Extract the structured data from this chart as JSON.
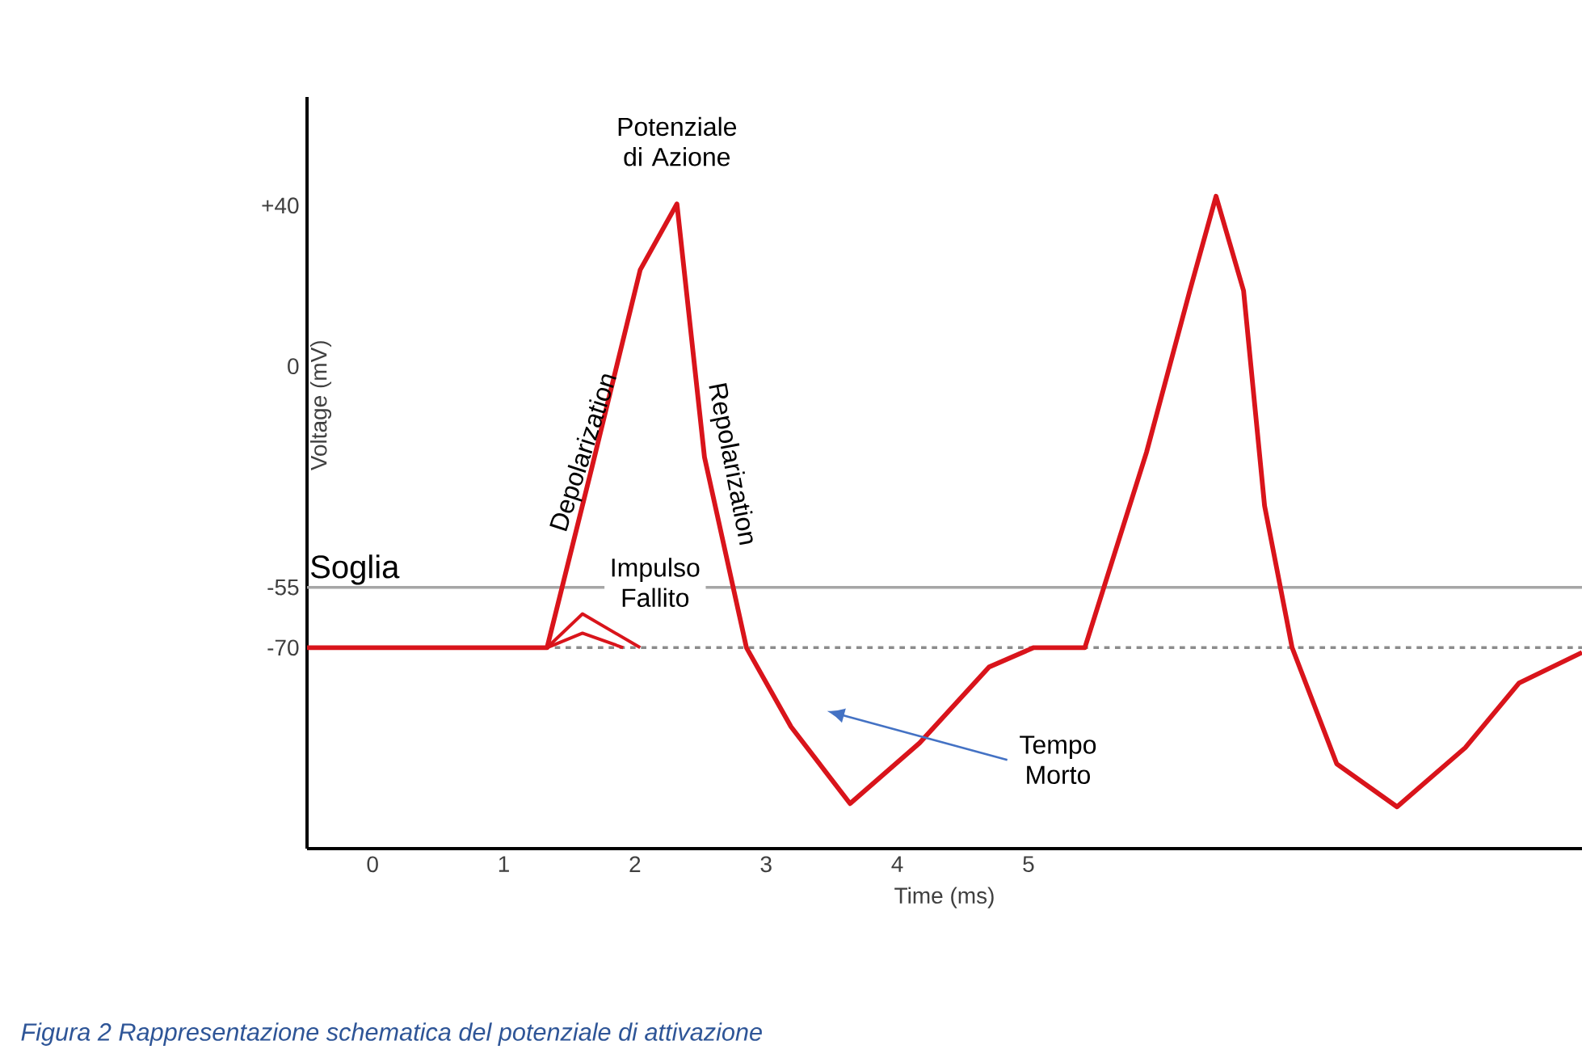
{
  "chart_data": {
    "type": "line",
    "xlabel": "Time (ms)",
    "ylabel": "Voltage (mV)",
    "xlim": [
      -0.5,
      9.22
    ],
    "ylim": [
      -120,
      67
    ],
    "xticks": [
      0,
      1,
      2,
      3,
      4,
      5
    ],
    "yticks": [
      {
        "value": 40,
        "label": "+40"
      },
      0,
      -55,
      -70
    ],
    "series": [
      {
        "color": "#d9141b",
        "x": [
          -0.5,
          1.33,
          1.67,
          2.04,
          2.32,
          2.53,
          2.85,
          3.19,
          3.64,
          4.17,
          4.7,
          5.04,
          5.43,
          5.9,
          6.23,
          6.43,
          6.64,
          6.8,
          7.01,
          7.35,
          7.81,
          8.33,
          8.74,
          9.22
        ],
        "values": [
          -70,
          -70,
          -25.4,
          24,
          40.4,
          -22.6,
          -70,
          -89.7,
          -108.8,
          -93.7,
          -74.8,
          -70,
          -70,
          -21.4,
          18.8,
          42.3,
          18.8,
          -34.7,
          -70,
          -98.9,
          -109.6,
          -94.9,
          -78.8,
          -71.2
        ]
      },
      {
        "color": "#d9141b",
        "x": [
          1.33,
          1.6,
          2.04
        ],
        "values": [
          -70,
          -61.6,
          -70
        ]
      },
      {
        "color": "#d9141b",
        "x": [
          1.33,
          1.6,
          1.91
        ],
        "values": [
          -70,
          -66.4,
          -70
        ]
      }
    ],
    "ref_lines": [
      {
        "axis": "y",
        "value": -55,
        "label": "Soglia",
        "color": "#a6a6a6"
      },
      {
        "axis": "y",
        "value": -70,
        "color": "#8c8c8c",
        "line_style": "dotted"
      }
    ],
    "annotations": [
      {
        "text": "Potenziale di Azione",
        "x": 2.32,
        "y": 40.4
      },
      "Depolarization",
      {
        "text": "Repolarization",
        "x": 2.57,
        "y": -25.4
      },
      {
        "text": "Impulso Fallito",
        "x": 1.6,
        "y": -61.6
      },
      "Tempo Morto",
      "Figura 2 Rappresentazione schematica del potenziale di attivazione"
    ]
  }
}
